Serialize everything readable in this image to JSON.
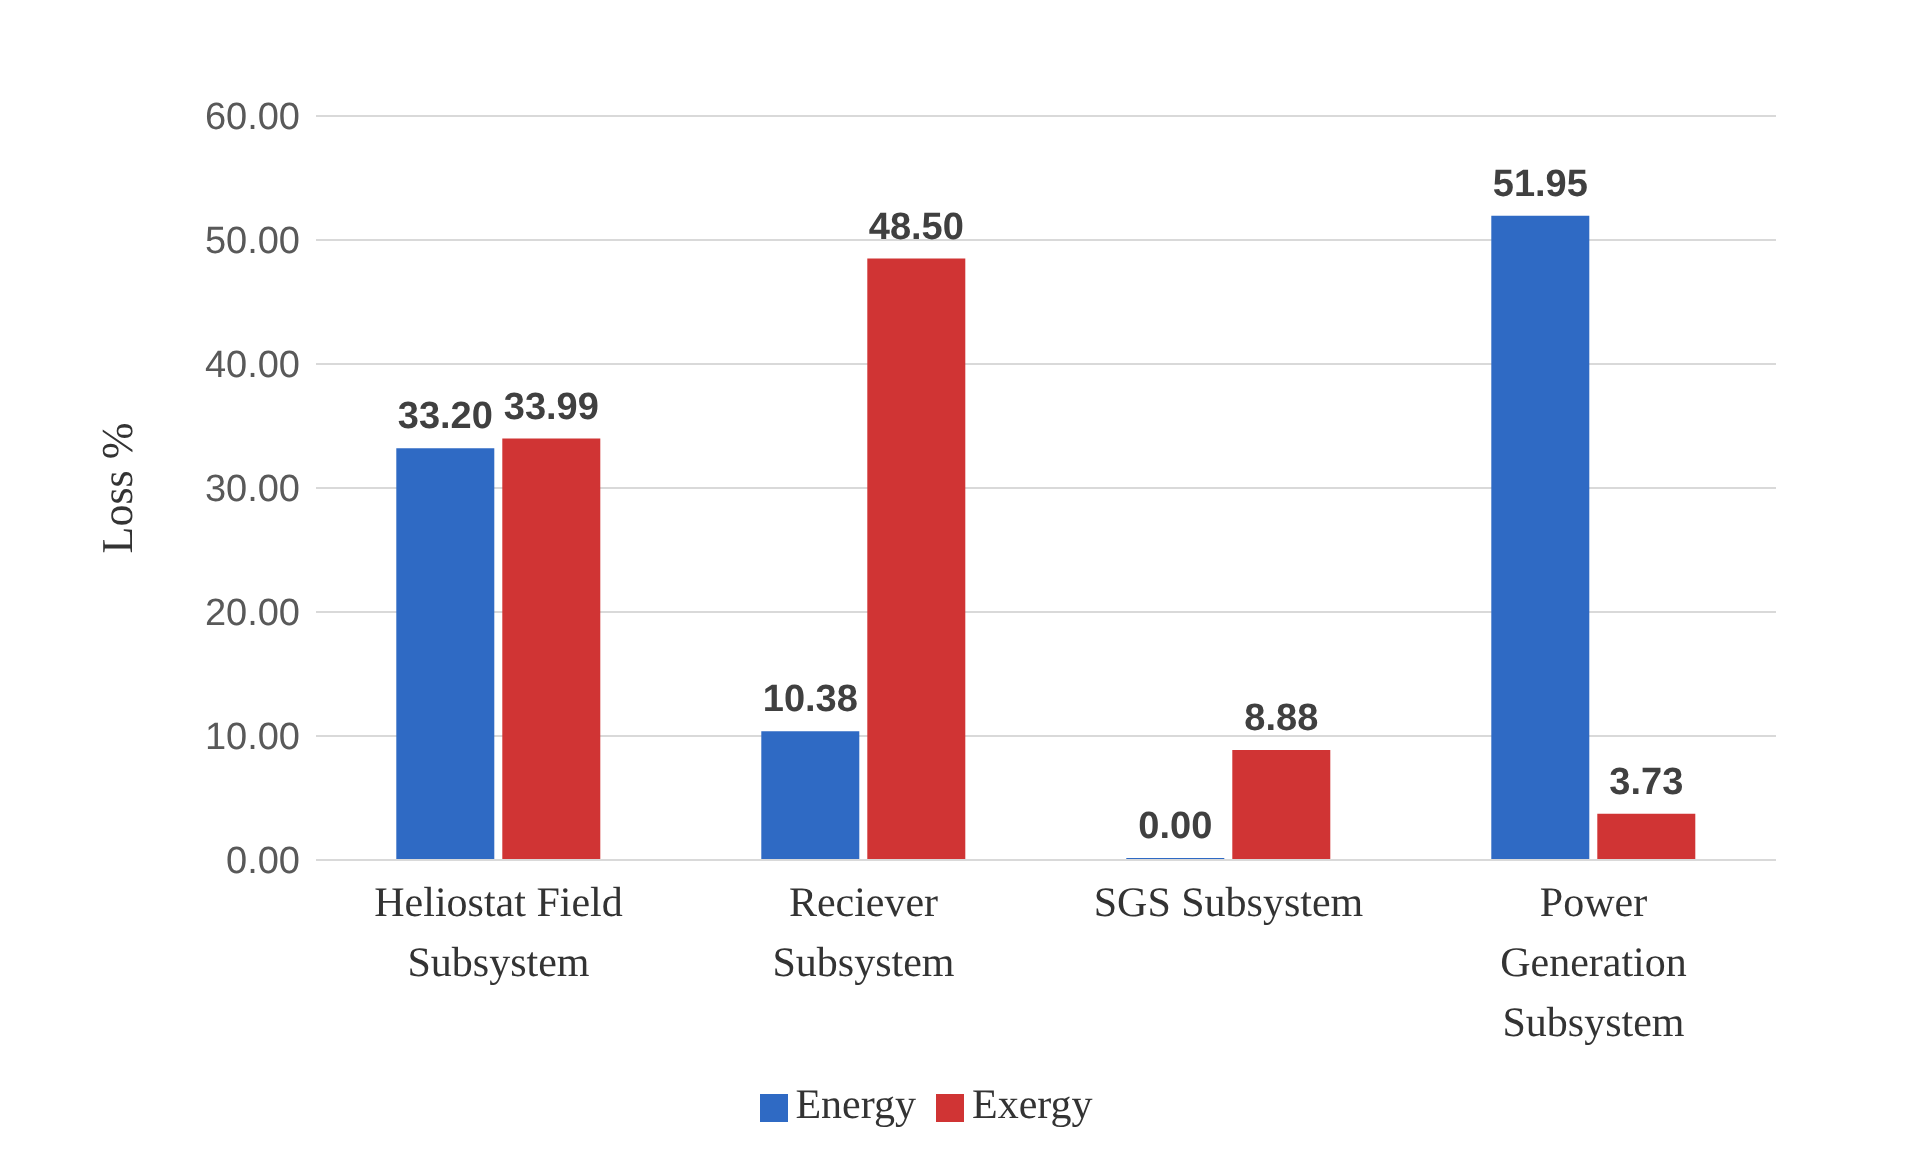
{
  "chart_data": {
    "type": "bar",
    "ylabel": "Loss %",
    "categories": [
      "Heliostat Field Subsystem",
      "Reciever Subsystem",
      "SGS Subsystem",
      "Power Generation Subsystem"
    ],
    "series": [
      {
        "name": "Energy",
        "color": "#2f6ac4",
        "values": [
          33.2,
          10.38,
          0,
          51.95
        ],
        "value_labels": [
          "33.20",
          "10.38",
          "0.00",
          "51.95"
        ]
      },
      {
        "name": "Exergy",
        "color": "#d03434",
        "values": [
          33.99,
          48.5,
          8.88,
          3.73
        ],
        "value_labels": [
          "33.99",
          "48.50",
          "8.88",
          "3.73"
        ]
      }
    ],
    "ylim": [
      0,
      60
    ],
    "yticks": [
      {
        "value": 0,
        "label": "0.00"
      },
      {
        "value": 10,
        "label": "10.00"
      },
      {
        "value": 20,
        "label": "20.00"
      },
      {
        "value": 30,
        "label": "30.00"
      },
      {
        "value": 40,
        "label": "40.00"
      },
      {
        "value": 50,
        "label": "50.00"
      },
      {
        "value": 60,
        "label": "60.00"
      }
    ],
    "grid": "y",
    "legend": "bottom"
  }
}
